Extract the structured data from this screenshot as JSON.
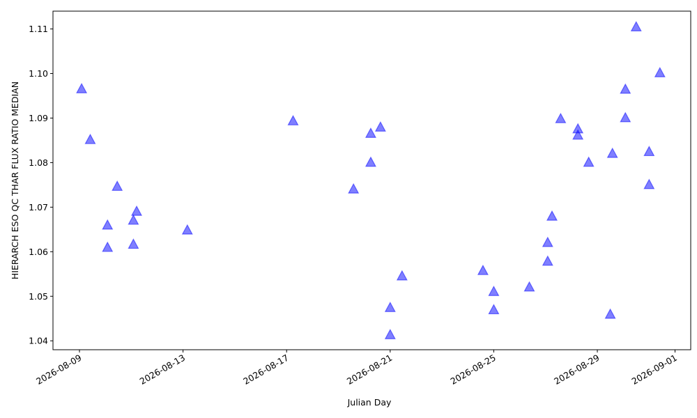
{
  "chart_data": {
    "type": "scatter",
    "xlabel": "Julian Day",
    "ylabel": "HIERARCH ESO QC THAR FLUX RATIO MEDIAN",
    "ylim": [
      1.038,
      1.114
    ],
    "xlim": [
      "2026-08-08",
      "2026-09-02"
    ],
    "x_ticks": [
      "2026-08-09",
      "2026-08-13",
      "2026-08-17",
      "2026-08-21",
      "2026-08-25",
      "2026-08-29",
      "2026-09-01"
    ],
    "y_ticks": [
      "1.04",
      "1.05",
      "1.06",
      "1.07",
      "1.08",
      "1.09",
      "1.10",
      "1.11"
    ],
    "grid": false,
    "marker": "triangle",
    "marker_color": "#0000ff",
    "marker_alpha": 0.5,
    "points": [
      {
        "x": "2026-08-09 02:00",
        "y": 1.0966
      },
      {
        "x": "2026-08-09 10:00",
        "y": 1.0852
      },
      {
        "x": "2026-08-10 02:00",
        "y": 1.066
      },
      {
        "x": "2026-08-10 02:00",
        "y": 1.061
      },
      {
        "x": "2026-08-10 11:00",
        "y": 1.0747
      },
      {
        "x": "2026-08-11 02:00",
        "y": 1.0671
      },
      {
        "x": "2026-08-11 02:00",
        "y": 1.0617
      },
      {
        "x": "2026-08-11 05:00",
        "y": 1.0691
      },
      {
        "x": "2026-08-13 04:00",
        "y": 1.0649
      },
      {
        "x": "2026-08-17 06:00",
        "y": 1.0894
      },
      {
        "x": "2026-08-19 14:00",
        "y": 1.0741
      },
      {
        "x": "2026-08-20 06:00",
        "y": 1.0866
      },
      {
        "x": "2026-08-20 06:00",
        "y": 1.0801
      },
      {
        "x": "2026-08-20 15:00",
        "y": 1.088
      },
      {
        "x": "2026-08-21 00:00",
        "y": 1.0475
      },
      {
        "x": "2026-08-21 00:00",
        "y": 1.0414
      },
      {
        "x": "2026-08-21 11:00",
        "y": 1.0546
      },
      {
        "x": "2026-08-24 14:00",
        "y": 1.0558
      },
      {
        "x": "2026-08-25 00:00",
        "y": 1.0511
      },
      {
        "x": "2026-08-25 00:00",
        "y": 1.047
      },
      {
        "x": "2026-08-26 09:00",
        "y": 1.0521
      },
      {
        "x": "2026-08-27 02:00",
        "y": 1.0621
      },
      {
        "x": "2026-08-27 02:00",
        "y": 1.0579
      },
      {
        "x": "2026-08-27 06:00",
        "y": 1.068
      },
      {
        "x": "2026-08-27 14:00",
        "y": 1.0899
      },
      {
        "x": "2026-08-28 06:00",
        "y": 1.0876
      },
      {
        "x": "2026-08-28 06:00",
        "y": 1.0862
      },
      {
        "x": "2026-08-28 16:00",
        "y": 1.0801
      },
      {
        "x": "2026-08-29 12:00",
        "y": 1.046
      },
      {
        "x": "2026-08-29 14:00",
        "y": 1.0821
      },
      {
        "x": "2026-08-30 02:00",
        "y": 1.0965
      },
      {
        "x": "2026-08-30 02:00",
        "y": 1.0901
      },
      {
        "x": "2026-08-30 12:00",
        "y": 1.1105
      },
      {
        "x": "2026-08-31 00:00",
        "y": 1.0825
      },
      {
        "x": "2026-08-31 00:00",
        "y": 1.0751
      },
      {
        "x": "2026-08-31 10:00",
        "y": 1.1002
      }
    ]
  }
}
